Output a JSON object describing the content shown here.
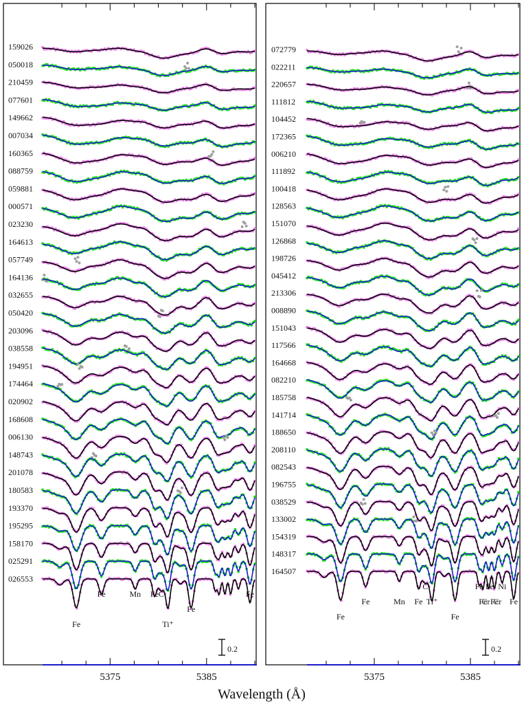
{
  "chart_data": {
    "type": "line",
    "xlabel": "Wavelength (Å)",
    "colors": {
      "observed_a": "#ee82ee",
      "observed_b": "#22dd22",
      "model_a": "#000000",
      "model_b": "#1a1acc",
      "masked": "#a0a0a0",
      "axis_blue": "#1a1acc"
    },
    "panels": [
      {
        "xlim": [
          5368.0,
          5390.0
        ],
        "xticks": [
          5375,
          5385
        ],
        "scale_bar_label": "0.2",
        "stars": [
          "159026",
          "050018",
          "210459",
          "077601",
          "149662",
          "007034",
          "160365",
          "088759",
          "059881",
          "000571",
          "023230",
          "164613",
          "057749",
          "164136",
          "032655",
          "050420",
          "203096",
          "038558",
          "194951",
          "174464",
          "020902",
          "168608",
          "006130",
          "148743",
          "201078",
          "180583",
          "193370",
          "195295",
          "158170",
          "025291",
          "026553"
        ],
        "lines": [
          {
            "label": "Fe",
            "x": 5371.5,
            "pos": "low"
          },
          {
            "label": "Fe",
            "x": 5374.1,
            "pos": "high"
          },
          {
            "label": "Mn",
            "x": 5377.6,
            "pos": "high"
          },
          {
            "label": "Fe",
            "x": 5379.6,
            "pos": "high"
          },
          {
            "label": "C",
            "x": 5380.3,
            "pos": "high"
          },
          {
            "label": "Ti⁺",
            "x": 5381.0,
            "pos": "low"
          },
          {
            "label": "Fe",
            "x": 5383.4,
            "pos": "mid"
          },
          {
            "label": "Fe",
            "x": 5389.5,
            "pos": "high"
          }
        ]
      },
      {
        "xlim": [
          5368.0,
          5390.0
        ],
        "xticks": [
          5375,
          5385
        ],
        "scale_bar_label": "0.2",
        "stars": [
          "072779",
          "022211",
          "220657",
          "111812",
          "104452",
          "172365",
          "006210",
          "111892",
          "100418",
          "128563",
          "151070",
          "126868",
          "198726",
          "045412",
          "213306",
          "008890",
          "151043",
          "117566",
          "164668",
          "082210",
          "185758",
          "141714",
          "188650",
          "208110",
          "082543",
          "196755",
          "038529",
          "133002",
          "154319",
          "148317",
          "164507"
        ],
        "lines": [
          {
            "label": "Fe",
            "x": 5371.5,
            "pos": "low"
          },
          {
            "label": "Fe",
            "x": 5374.1,
            "pos": "mid"
          },
          {
            "label": "Mn",
            "x": 5377.6,
            "pos": "mid"
          },
          {
            "label": "Fe",
            "x": 5379.6,
            "pos": "mid"
          },
          {
            "label": "C",
            "x": 5380.3,
            "pos": "high"
          },
          {
            "label": "Ti⁺",
            "x": 5381.0,
            "pos": "mid"
          },
          {
            "label": "Fe",
            "x": 5383.4,
            "pos": "low"
          },
          {
            "label": "Fe",
            "x": 5385.9,
            "pos": "high"
          },
          {
            "label": "Fe",
            "x": 5386.3,
            "pos": "mid"
          },
          {
            "label": "Fe",
            "x": 5387.0,
            "pos": "high"
          },
          {
            "label": "Cr",
            "x": 5386.6,
            "pos": "mid"
          },
          {
            "label": "Fe",
            "x": 5387.5,
            "pos": "mid"
          },
          {
            "label": "Cr",
            "x": 5387.8,
            "pos": "mid"
          },
          {
            "label": "Ni",
            "x": 5388.3,
            "pos": "high"
          },
          {
            "label": "Fe",
            "x": 5389.5,
            "pos": "mid"
          }
        ]
      }
    ],
    "spectral_features": [
      {
        "x": 5369.8,
        "depth": 0.18,
        "width": 0.35
      },
      {
        "x": 5371.5,
        "depth": 0.85,
        "width": 0.32
      },
      {
        "x": 5374.1,
        "depth": 0.45,
        "width": 0.25
      },
      {
        "x": 5377.6,
        "depth": 0.3,
        "width": 0.2
      },
      {
        "x": 5379.6,
        "depth": 0.5,
        "width": 0.2
      },
      {
        "x": 5380.3,
        "depth": 0.35,
        "width": 0.3
      },
      {
        "x": 5381.0,
        "depth": 0.85,
        "width": 0.22
      },
      {
        "x": 5382.3,
        "depth": 0.15,
        "width": 0.25
      },
      {
        "x": 5383.4,
        "depth": 0.85,
        "width": 0.25
      },
      {
        "x": 5385.9,
        "depth": 0.35,
        "width": 0.15
      },
      {
        "x": 5386.3,
        "depth": 0.45,
        "width": 0.15
      },
      {
        "x": 5386.9,
        "depth": 0.45,
        "width": 0.15
      },
      {
        "x": 5387.5,
        "depth": 0.45,
        "width": 0.15
      },
      {
        "x": 5388.3,
        "depth": 0.3,
        "width": 0.15
      },
      {
        "x": 5389.5,
        "depth": 0.7,
        "width": 0.2
      }
    ]
  }
}
